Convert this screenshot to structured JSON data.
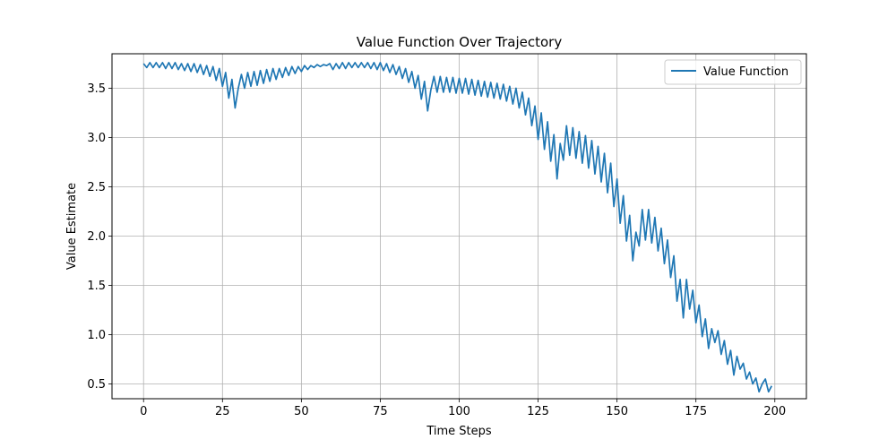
{
  "chart_data": {
    "type": "line",
    "title": "Value Function Over Trajectory",
    "xlabel": "Time Steps",
    "ylabel": "Value Estimate",
    "xlim": [
      -10,
      210
    ],
    "ylim": [
      0.35,
      3.85
    ],
    "xticks": [
      0,
      25,
      50,
      75,
      100,
      125,
      150,
      175,
      200
    ],
    "yticks": [
      0.5,
      1.0,
      1.5,
      2.0,
      2.5,
      3.0,
      3.5
    ],
    "ytick_labels": [
      "0.5",
      "1.0",
      "1.5",
      "2.0",
      "2.5",
      "3.0",
      "3.5"
    ],
    "grid": true,
    "legend": "top-right",
    "series": [
      {
        "name": "Value Function",
        "color": "#1f77b4",
        "x": [
          0,
          1,
          2,
          3,
          4,
          5,
          6,
          7,
          8,
          9,
          10,
          11,
          12,
          13,
          14,
          15,
          16,
          17,
          18,
          19,
          20,
          21,
          22,
          23,
          24,
          25,
          26,
          27,
          28,
          29,
          30,
          31,
          32,
          33,
          34,
          35,
          36,
          37,
          38,
          39,
          40,
          41,
          42,
          43,
          44,
          45,
          46,
          47,
          48,
          49,
          50,
          51,
          52,
          53,
          54,
          55,
          56,
          57,
          58,
          59,
          60,
          61,
          62,
          63,
          64,
          65,
          66,
          67,
          68,
          69,
          70,
          71,
          72,
          73,
          74,
          75,
          76,
          77,
          78,
          79,
          80,
          81,
          82,
          83,
          84,
          85,
          86,
          87,
          88,
          89,
          90,
          91,
          92,
          93,
          94,
          95,
          96,
          97,
          98,
          99,
          100,
          101,
          102,
          103,
          104,
          105,
          106,
          107,
          108,
          109,
          110,
          111,
          112,
          113,
          114,
          115,
          116,
          117,
          118,
          119,
          120,
          121,
          122,
          123,
          124,
          125,
          126,
          127,
          128,
          129,
          130,
          131,
          132,
          133,
          134,
          135,
          136,
          137,
          138,
          139,
          140,
          141,
          142,
          143,
          144,
          145,
          146,
          147,
          148,
          149,
          150,
          151,
          152,
          153,
          154,
          155,
          156,
          157,
          158,
          159,
          160,
          161,
          162,
          163,
          164,
          165,
          166,
          167,
          168,
          169,
          170,
          171,
          172,
          173,
          174,
          175,
          176,
          177,
          178,
          179,
          180,
          181,
          182,
          183,
          184,
          185,
          186,
          187,
          188,
          189,
          190,
          191,
          192,
          193,
          194,
          195,
          196,
          197,
          198,
          199
        ],
        "y": [
          3.75,
          3.71,
          3.76,
          3.71,
          3.76,
          3.71,
          3.76,
          3.7,
          3.76,
          3.7,
          3.76,
          3.69,
          3.75,
          3.68,
          3.75,
          3.67,
          3.75,
          3.66,
          3.74,
          3.64,
          3.73,
          3.62,
          3.72,
          3.58,
          3.7,
          3.52,
          3.66,
          3.4,
          3.59,
          3.3,
          3.5,
          3.64,
          3.5,
          3.66,
          3.52,
          3.67,
          3.53,
          3.68,
          3.55,
          3.69,
          3.57,
          3.7,
          3.59,
          3.7,
          3.61,
          3.71,
          3.63,
          3.72,
          3.65,
          3.72,
          3.67,
          3.73,
          3.69,
          3.73,
          3.71,
          3.74,
          3.72,
          3.74,
          3.73,
          3.75,
          3.69,
          3.75,
          3.7,
          3.76,
          3.7,
          3.76,
          3.71,
          3.76,
          3.71,
          3.76,
          3.71,
          3.76,
          3.7,
          3.76,
          3.69,
          3.76,
          3.68,
          3.75,
          3.66,
          3.74,
          3.64,
          3.72,
          3.6,
          3.7,
          3.56,
          3.67,
          3.5,
          3.63,
          3.39,
          3.57,
          3.27,
          3.48,
          3.62,
          3.46,
          3.62,
          3.46,
          3.61,
          3.46,
          3.61,
          3.45,
          3.6,
          3.45,
          3.6,
          3.44,
          3.59,
          3.43,
          3.58,
          3.42,
          3.57,
          3.41,
          3.56,
          3.4,
          3.55,
          3.39,
          3.54,
          3.37,
          3.52,
          3.34,
          3.5,
          3.3,
          3.46,
          3.23,
          3.4,
          3.12,
          3.32,
          2.98,
          3.25,
          2.88,
          3.16,
          2.76,
          3.03,
          2.58,
          2.94,
          2.77,
          3.12,
          2.82,
          3.1,
          2.79,
          3.06,
          2.74,
          3.02,
          2.69,
          2.97,
          2.63,
          2.91,
          2.55,
          2.84,
          2.44,
          2.74,
          2.3,
          2.58,
          2.13,
          2.41,
          1.95,
          2.21,
          1.75,
          2.04,
          1.9,
          2.27,
          1.96,
          2.27,
          1.93,
          2.19,
          1.85,
          2.08,
          1.72,
          1.96,
          1.58,
          1.8,
          1.34,
          1.56,
          1.17,
          1.56,
          1.26,
          1.45,
          1.12,
          1.3,
          0.98,
          1.16,
          0.86,
          1.06,
          0.92,
          1.04,
          0.8,
          0.94,
          0.7,
          0.84,
          0.59,
          0.78,
          0.65,
          0.71,
          0.55,
          0.62,
          0.5,
          0.56,
          0.42,
          0.5,
          0.55,
          0.42,
          0.48
        ]
      }
    ]
  }
}
